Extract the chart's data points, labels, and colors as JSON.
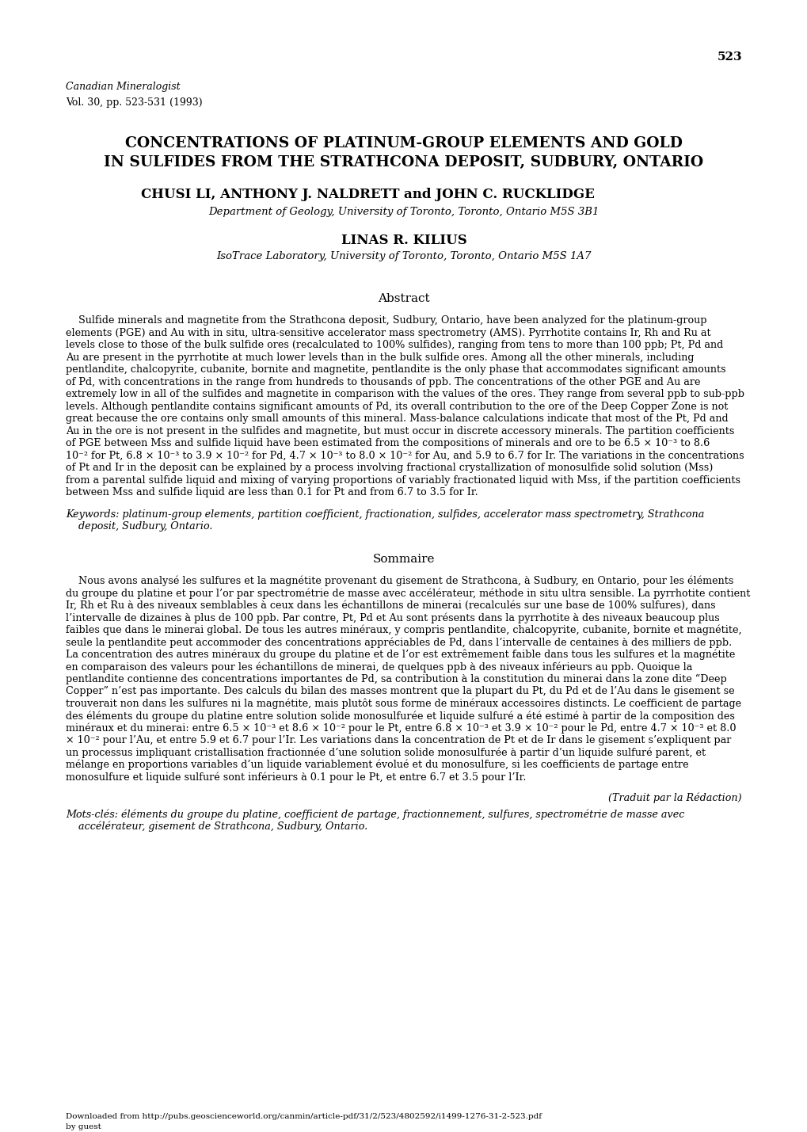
{
  "page_number": "523",
  "journal_line1": "Canadian Mineralogist",
  "journal_line2": "Vol. 30, pp. 523-531 (1993)",
  "title_line1": "CONCENTRATIONS OF PLATINUM-GROUP ELEMENTS AND GOLD",
  "title_line2": "IN SULFIDES FROM THE STRATHCONA DEPOSIT, SUDBURY, ONTARIO",
  "authors_line": "CHUSI LI, ANTHONY J. NALDRETT AND JOHN C. RUCKLIDGE",
  "affiliation1": "Department of Geology, University of Toronto, Toronto, Ontario M5S 3B1",
  "author2": "LINAS R. KILIUS",
  "affiliation2": "IsoTrace Laboratory, University of Toronto, Toronto, Ontario M5S 1A7",
  "abstract_heading": "Abstract",
  "sommaire_heading": "Sommaire",
  "traduit": "(Traduit par la Rédaction)",
  "footer_text": "Downloaded from http://pubs.geoscienceworld.org/canmin/article-pdf/31/2/523/4802592/i1499-1276-31-2-523.pdf",
  "footer_text2": "by guest",
  "abstract_lines": [
    "    Sulfide minerals and magnetite from the Strathcona deposit, Sudbury, Ontario, have been analyzed for the platinum-group",
    "elements (PGE) and Au with in situ, ultra-sensitive accelerator mass spectrometry (AMS). Pyrrhotite contains Ir, Rh and Ru at",
    "levels close to those of the bulk sulfide ores (recalculated to 100% sulfides), ranging from tens to more than 100 ppb; Pt, Pd and",
    "Au are present in the pyrrhotite at much lower levels than in the bulk sulfide ores. Among all the other minerals, including",
    "pentlandite, chalcopyrite, cubanite, bornite and magnetite, pentlandite is the only phase that accommodates significant amounts",
    "of Pd, with concentrations in the range from hundreds to thousands of ppb. The concentrations of the other PGE and Au are",
    "extremely low in all of the sulfides and magnetite in comparison with the values of the ores. They range from several ppb to sub-ppb",
    "levels. Although pentlandite contains significant amounts of Pd, its overall contribution to the ore of the Deep Copper Zone is not",
    "great because the ore contains only small amounts of this mineral. Mass-balance calculations indicate that most of the Pt, Pd and",
    "Au in the ore is not present in the sulfides and magnetite, but must occur in discrete accessory minerals. The partition coefficients",
    "of PGE between Mss and sulfide liquid have been estimated from the compositions of minerals and ore to be 6.5 × 10⁻³ to 8.6",
    "10⁻² for Pt, 6.8 × 10⁻³ to 3.9 × 10⁻² for Pd, 4.7 × 10⁻³ to 8.0 × 10⁻² for Au, and 5.9 to 6.7 for Ir. The variations in the concentrations",
    "of Pt and Ir in the deposit can be explained by a process involving fractional crystallization of monosulfide solid solution (Mss)",
    "from a parental sulfide liquid and mixing of varying proportions of variably fractionated liquid with Mss, if the partition coefficients",
    "between Mss and sulfide liquid are less than 0.1 for Pt and from 6.7 to 3.5 for Ir."
  ],
  "keywords_line1": "Keywords: platinum-group elements, partition coefficient, fractionation, sulfides, accelerator mass spectrometry, Strathcona",
  "keywords_line2": "    deposit, Sudbury, Ontario.",
  "sommaire_lines": [
    "    Nous avons analysé les sulfures et la magnétite provenant du gisement de Strathcona, à Sudbury, en Ontario, pour les éléments",
    "du groupe du platine et pour l’or par spectrométrie de masse avec accélérateur, méthode in situ ultra sensible. La pyrrhotite contient",
    "Ir, Rh et Ru à des niveaux semblables à ceux dans les échantillons de minerai (recalculés sur une base de 100% sulfures), dans",
    "l’intervalle de dizaines à plus de 100 ppb. Par contre, Pt, Pd et Au sont présents dans la pyrrhotite à des niveaux beaucoup plus",
    "faibles que dans le minerai global. De tous les autres minéraux, y compris pentlandite, chalcopyrite, cubanite, bornite et magnétite,",
    "seule la pentlandite peut accommoder des concentrations appréciables de Pd, dans l’intervalle de centaines à des milliers de ppb.",
    "La concentration des autres minéraux du groupe du platine et de l’or est extrêmement faible dans tous les sulfures et la magnétite",
    "en comparaison des valeurs pour les échantillons de minerai, de quelques ppb à des niveaux inférieurs au ppb. Quoique la",
    "pentlandite contienne des concentrations importantes de Pd, sa contribution à la constitution du minerai dans la zone dite “Deep",
    "Copper” n’est pas importante. Des calculs du bilan des masses montrent que la plupart du Pt, du Pd et de l’Au dans le gisement se",
    "trouverait non dans les sulfures ni la magnétite, mais plutôt sous forme de minéraux accessoires distincts. Le coefficient de partage",
    "des éléments du groupe du platine entre solution solide monosulfurée et liquide sulfuré a été estimé à partir de la composition des",
    "minéraux et du minerai: entre 6.5 × 10⁻³ et 8.6 × 10⁻² pour le Pt, entre 6.8 × 10⁻³ et 3.9 × 10⁻² pour le Pd, entre 4.7 × 10⁻³ et 8.0",
    "× 10⁻² pour l’Au, et entre 5.9 et 6.7 pour l’Ir. Les variations dans la concentration de Pt et de Ir dans le gisement s’expliquent par",
    "un processus impliquant cristallisation fractionnée d’une solution solide monosulfurée à partir d’un liquide sulfuré parent, et",
    "mélange en proportions variables d’un liquide variablement évolué et du monosulfure, si les coefficients de partage entre",
    "monosulfure et liquide sulfuré sont inférieurs à 0.1 pour le Pt, et entre 6.7 et 3.5 pour l’Ir."
  ],
  "motscles_line1": "Mots-clés: éléments du groupe du platine, coefficient de partage, fractionnement, sulfures, spectrométrie de masse avec",
  "motscles_line2": "    accélérateur, gisement de Strathcona, Sudbury, Ontario.",
  "background_color": "#ffffff"
}
